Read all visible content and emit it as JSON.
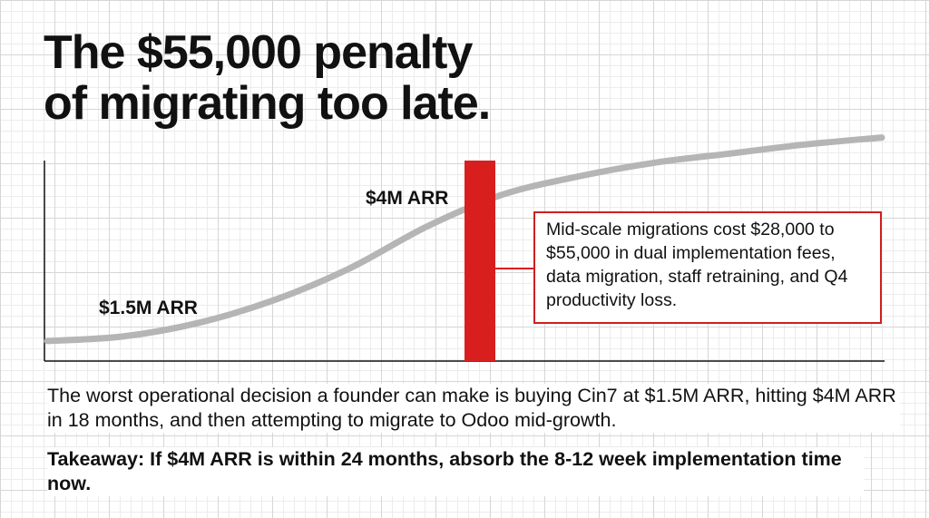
{
  "title": {
    "line1": "The $55,000 penalty",
    "line2": "of migrating too late."
  },
  "chart_data": {
    "type": "line",
    "series": [
      {
        "values": [
          0.04,
          0.06,
          0.12,
          0.22,
          0.36,
          0.54,
          0.68,
          0.76,
          0.82,
          0.86,
          0.9,
          0.93
        ]
      }
    ],
    "annotations": {
      "low_label": "$1.5M ARR",
      "high_label": "$4M ARR"
    },
    "marker_color": "#d91e1e",
    "curve_color": "#b5b5b5"
  },
  "callout": {
    "text": "Mid-scale migrations cost $28,000 to $55,000 in dual implementation fees, data migration, staff retraining, and Q4 productivity loss."
  },
  "body": {
    "text": "The worst operational decision a founder can make is buying Cin7 at $1.5M ARR, hitting $4M ARR in 18 months, and then attempting to migrate to Odoo mid-growth."
  },
  "takeaway": {
    "text": "Takeaway: If $4M ARR is within 24 months, absorb the 8-12 week implementation time now."
  }
}
